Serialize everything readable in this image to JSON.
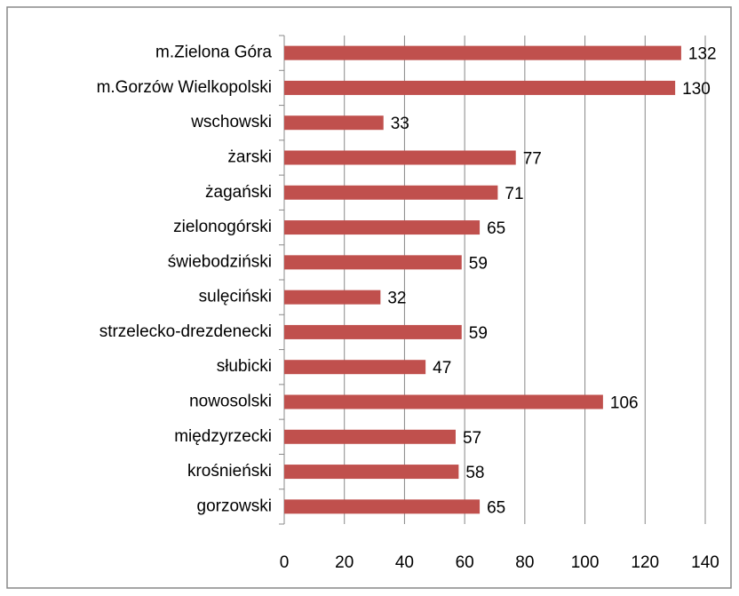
{
  "chart_data": {
    "type": "bar",
    "orientation": "horizontal",
    "categories": [
      "m.Zielona Góra",
      "m.Gorzów Wielkopolski",
      "wschowski",
      "żarski",
      "żagański",
      "zielonogórski",
      "świebodziński",
      "sulęciński",
      "strzelecko-drezdenecki",
      "słubicki",
      "nowosolski",
      "międzyrzecki",
      "krośnieński",
      "gorzowski"
    ],
    "values": [
      132,
      130,
      33,
      77,
      71,
      65,
      59,
      32,
      59,
      47,
      106,
      57,
      58,
      65
    ],
    "color": "#c0504d",
    "xlim": [
      0,
      140
    ],
    "xticks": [
      0,
      20,
      40,
      60,
      80,
      100,
      120,
      140
    ],
    "grid": true
  }
}
